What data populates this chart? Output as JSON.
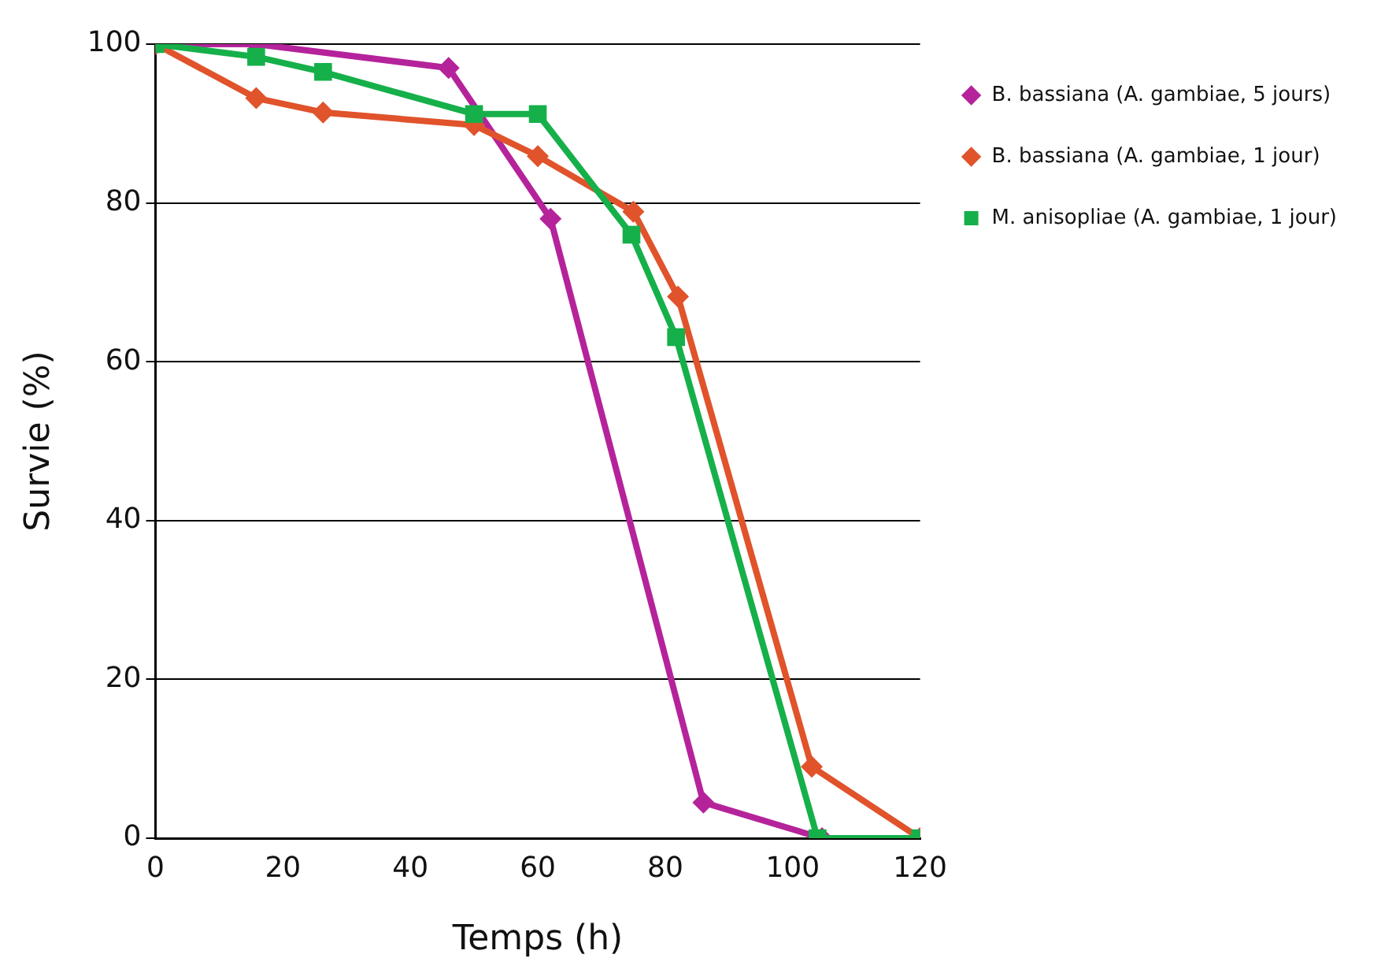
{
  "chart_data": {
    "type": "line",
    "xlabel": "Temps (h)",
    "ylabel": "Survie (%)",
    "xlim": [
      0,
      120
    ],
    "xticks": [
      0,
      20,
      40,
      60,
      80,
      100,
      120
    ],
    "ylim": [
      0,
      100
    ],
    "yticks": [
      0,
      20,
      40,
      60,
      80,
      100
    ],
    "grid": "y",
    "legend": "right",
    "line_style": "solid",
    "series": [
      {
        "name": "B. bassiana (A. gambiae, 5 jours)",
        "color": "#b5239b",
        "marker": "diamond",
        "x": [
          0,
          15.8,
          46,
          62,
          86,
          104.6,
          120
        ],
        "values": [
          100,
          100,
          97,
          78,
          4.5,
          0,
          0
        ]
      },
      {
        "name": "B. bassiana (A. gambiae, 1 jour)",
        "color": "#e0532b",
        "marker": "diamond",
        "x": [
          0,
          15.8,
          26.3,
          50,
          60,
          75,
          82,
          103,
          120
        ],
        "values": [
          100,
          93.2,
          91.4,
          89.8,
          85.9,
          78.9,
          68.2,
          9,
          0
        ]
      },
      {
        "name": "M. anisopliae (A. gambiae, 1 jour)",
        "color": "#16b04a",
        "marker": "square",
        "x": [
          0,
          15.8,
          26.3,
          50,
          60,
          74.7,
          81.7,
          103.9,
          120
        ],
        "values": [
          100,
          98.4,
          96.5,
          91.2,
          91.2,
          76,
          63.1,
          0,
          0
        ]
      }
    ]
  }
}
